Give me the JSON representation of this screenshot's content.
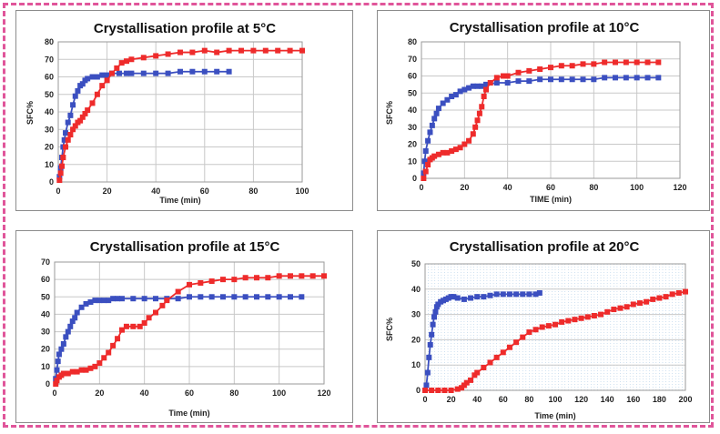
{
  "colors": {
    "blue_series": "#3b4fc0",
    "red_series": "#ee2b2b",
    "frame_dash": "#e0559a",
    "grid": "#c8c8c8"
  },
  "chart_data": [
    {
      "type": "scatter",
      "title": "Crystallisation profile at 5°C",
      "xlabel": "Time (min)",
      "ylabel": "SFC%",
      "xlim": [
        0,
        100
      ],
      "ylim": [
        0,
        80
      ],
      "xticks": [
        0,
        20,
        40,
        60,
        80,
        100
      ],
      "yticks": [
        0,
        10,
        20,
        30,
        40,
        50,
        60,
        70,
        80
      ],
      "grid": true,
      "series": [
        {
          "color": "#3b4fc0",
          "x": [
            0.5,
            1,
            1.5,
            2,
            2.5,
            3,
            4,
            5,
            6,
            7,
            8,
            9,
            10,
            11,
            12,
            14,
            16,
            18,
            20,
            22,
            25,
            28,
            30,
            35,
            40,
            45,
            50,
            55,
            60,
            65,
            70
          ],
          "y": [
            3,
            8,
            14,
            20,
            24,
            28,
            34,
            38,
            44,
            49,
            52,
            55,
            56,
            58,
            59,
            60,
            60,
            61,
            61,
            62,
            62,
            62,
            62,
            62,
            62,
            62,
            63,
            63,
            63,
            63,
            63
          ]
        },
        {
          "color": "#ee2b2b",
          "x": [
            0.5,
            1,
            1.5,
            2,
            3,
            4,
            5,
            6,
            7,
            8,
            9,
            10,
            11,
            12,
            14,
            16,
            18,
            20,
            22,
            24,
            26,
            28,
            30,
            35,
            40,
            45,
            50,
            55,
            60,
            65,
            70,
            75,
            80,
            85,
            90,
            95,
            100
          ],
          "y": [
            1,
            5,
            9,
            14,
            20,
            24,
            27,
            30,
            32,
            34,
            35,
            37,
            39,
            41,
            45,
            50,
            55,
            58,
            62,
            65,
            68,
            69,
            70,
            71,
            72,
            73,
            74,
            74,
            75,
            74,
            75,
            75,
            75,
            75,
            75,
            75,
            75
          ]
        }
      ]
    },
    {
      "type": "scatter",
      "title": "Crystallisation profile at 10°C",
      "xlabel": "TIME (min)",
      "ylabel": "SFC%",
      "xlim": [
        0,
        120
      ],
      "ylim": [
        0,
        80
      ],
      "xticks": [
        0,
        20,
        40,
        60,
        80,
        100,
        120
      ],
      "yticks": [
        0,
        10,
        20,
        30,
        40,
        50,
        60,
        70,
        80
      ],
      "grid": true,
      "series": [
        {
          "color": "#3b4fc0",
          "x": [
            1,
            1.5,
            2,
            3,
            4,
            5,
            6,
            7,
            8,
            10,
            12,
            14,
            16,
            18,
            20,
            22,
            24,
            26,
            28,
            30,
            35,
            40,
            45,
            50,
            55,
            60,
            65,
            70,
            75,
            80,
            85,
            90,
            95,
            100,
            105,
            110
          ],
          "y": [
            3,
            10,
            16,
            22,
            27,
            31,
            35,
            38,
            41,
            44,
            46,
            48,
            49,
            51,
            52,
            53,
            54,
            54,
            54,
            55,
            56,
            56,
            57,
            57,
            58,
            58,
            58,
            58,
            58,
            58,
            59,
            59,
            59,
            59,
            59,
            59
          ]
        },
        {
          "color": "#ee2b2b",
          "x": [
            1,
            2,
            3,
            4,
            5,
            6,
            8,
            10,
            12,
            14,
            16,
            18,
            20,
            22,
            24,
            25,
            26,
            27,
            28,
            29,
            30,
            32,
            35,
            38,
            40,
            45,
            50,
            55,
            60,
            65,
            70,
            75,
            80,
            85,
            90,
            95,
            100,
            105,
            110
          ],
          "y": [
            0,
            4,
            8,
            11,
            12,
            13,
            14,
            15,
            15,
            16,
            17,
            18,
            20,
            22,
            26,
            30,
            34,
            38,
            42,
            48,
            52,
            56,
            59,
            60,
            60,
            62,
            63,
            64,
            65,
            66,
            66,
            67,
            67,
            68,
            68,
            68,
            68,
            68,
            68
          ]
        }
      ]
    },
    {
      "type": "scatter",
      "title": "Crystallisation profile at 15°C",
      "xlabel": "Time (min)",
      "ylabel": "",
      "xlim": [
        0,
        120
      ],
      "ylim": [
        0,
        70
      ],
      "xticks": [
        0,
        20,
        40,
        60,
        80,
        100,
        120
      ],
      "yticks": [
        0,
        10,
        20,
        30,
        40,
        50,
        60,
        70
      ],
      "grid": true,
      "series": [
        {
          "color": "#3b4fc0",
          "x": [
            0.5,
            1,
            1.5,
            2,
            3,
            4,
            5,
            6,
            7,
            8,
            9,
            10,
            12,
            14,
            16,
            18,
            20,
            22,
            24,
            26,
            28,
            30,
            35,
            40,
            45,
            50,
            55,
            60,
            65,
            70,
            75,
            80,
            85,
            90,
            95,
            100,
            105,
            110
          ],
          "y": [
            3,
            8,
            13,
            17,
            20,
            23,
            27,
            30,
            33,
            36,
            38,
            41,
            44,
            46,
            47,
            48,
            48,
            48,
            48,
            49,
            49,
            49,
            49,
            49,
            49,
            49,
            49,
            50,
            50,
            50,
            50,
            50,
            50,
            50,
            50,
            50,
            50,
            50
          ]
        },
        {
          "color": "#ee2b2b",
          "x": [
            0.5,
            1,
            2,
            3,
            4,
            6,
            8,
            10,
            12,
            14,
            16,
            18,
            20,
            22,
            24,
            26,
            28,
            30,
            32,
            35,
            38,
            40,
            42,
            45,
            48,
            50,
            55,
            60,
            65,
            70,
            75,
            80,
            85,
            90,
            95,
            100,
            105,
            110,
            115,
            120
          ],
          "y": [
            0,
            2,
            4,
            5,
            6,
            6,
            7,
            7,
            8,
            8,
            9,
            10,
            12,
            15,
            18,
            22,
            26,
            31,
            33,
            33,
            33,
            35,
            38,
            41,
            45,
            48,
            53,
            57,
            58,
            59,
            60,
            60,
            61,
            61,
            61,
            62,
            62,
            62,
            62,
            62
          ]
        }
      ]
    },
    {
      "type": "scatter",
      "title": "Crystallisation profile at 20°C",
      "xlabel": "Time (min)",
      "ylabel": "SFC%",
      "xlim": [
        0,
        200
      ],
      "ylim": [
        0,
        50
      ],
      "xticks": [
        0,
        20,
        40,
        60,
        80,
        100,
        120,
        140,
        160,
        180,
        200
      ],
      "yticks": [
        0,
        10,
        20,
        30,
        40,
        50
      ],
      "grid": true,
      "series": [
        {
          "color": "#3b4fc0",
          "x": [
            1,
            2,
            3,
            4,
            5,
            6,
            7,
            8,
            9,
            10,
            12,
            14,
            16,
            18,
            20,
            22,
            25,
            30,
            35,
            40,
            45,
            50,
            55,
            60,
            65,
            70,
            75,
            80,
            85,
            88
          ],
          "y": [
            2,
            7,
            13,
            18,
            22,
            26,
            29,
            31,
            33,
            34,
            35,
            35.5,
            36,
            36.5,
            37,
            37,
            36.5,
            36,
            36.5,
            37,
            37,
            37.5,
            38,
            38,
            38,
            38,
            38,
            38,
            38,
            38.5
          ]
        },
        {
          "color": "#ee2b2b",
          "x": [
            0,
            5,
            10,
            15,
            20,
            25,
            28,
            30,
            32,
            35,
            38,
            40,
            45,
            50,
            55,
            60,
            65,
            70,
            75,
            80,
            85,
            90,
            95,
            100,
            105,
            110,
            115,
            120,
            125,
            130,
            135,
            140,
            145,
            150,
            155,
            160,
            165,
            170,
            175,
            180,
            185,
            190,
            195,
            200
          ],
          "y": [
            0,
            0,
            0,
            0,
            0,
            0.5,
            1,
            2,
            3,
            4,
            6,
            7,
            9,
            11,
            13,
            15,
            17,
            19,
            21,
            23,
            24,
            25,
            25.5,
            26,
            27,
            27.5,
            28,
            28.5,
            29,
            29.5,
            30,
            31,
            32,
            32.5,
            33,
            34,
            34.5,
            35,
            36,
            36.5,
            37,
            38,
            38.5,
            39
          ]
        }
      ]
    }
  ]
}
